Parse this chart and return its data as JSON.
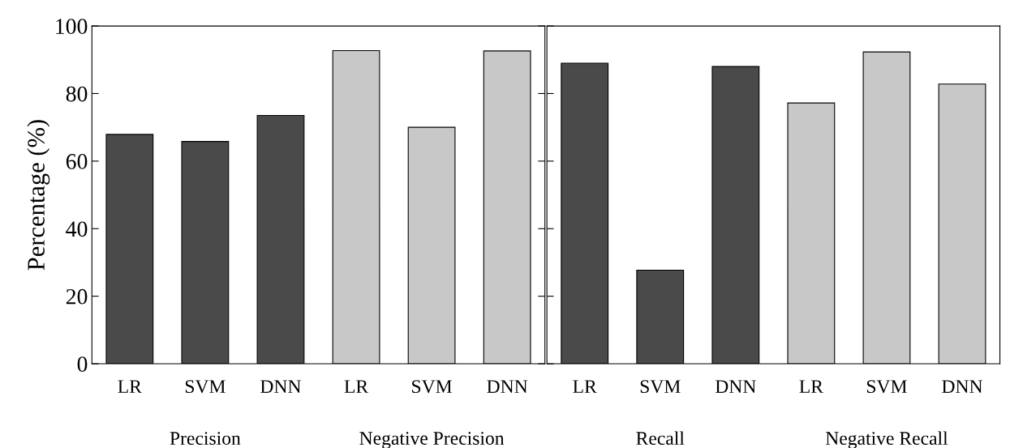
{
  "chart_data": [
    {
      "type": "bar",
      "ylabel": "Percentage (%)",
      "categories": [
        "LR",
        "SVM",
        "DNN",
        "LR",
        "SVM",
        "DNN"
      ],
      "values": [
        67.9,
        65.8,
        73.5,
        92.7,
        70.0,
        92.6
      ],
      "colors": [
        "#4a4a4a",
        "#4a4a4a",
        "#4a4a4a",
        "#c8c8c8",
        "#c8c8c8",
        "#c8c8c8"
      ],
      "ylim": [
        0,
        100
      ],
      "yticks": [
        0,
        20,
        40,
        60,
        80,
        100
      ],
      "annotations": [
        "Precision",
        "Negative Precision"
      ]
    },
    {
      "type": "bar",
      "categories": [
        "LR",
        "SVM",
        "DNN",
        "LR",
        "SVM",
        "DNN"
      ],
      "values": [
        89.0,
        27.7,
        88.0,
        77.2,
        92.3,
        82.8
      ],
      "colors": [
        "#4a4a4a",
        "#4a4a4a",
        "#4a4a4a",
        "#c8c8c8",
        "#c8c8c8",
        "#c8c8c8"
      ],
      "ylim": [
        0,
        100
      ],
      "yticks": [
        {
          "value": 0,
          "label": null
        },
        {
          "value": 20,
          "label": null
        },
        {
          "value": 40,
          "label": null
        },
        {
          "value": 60,
          "label": null
        },
        {
          "value": 80,
          "label": null
        },
        {
          "value": 100,
          "label": null
        }
      ],
      "tick_labels": "x",
      "annotations": [
        "Recall",
        "Negative Recall"
      ]
    }
  ]
}
